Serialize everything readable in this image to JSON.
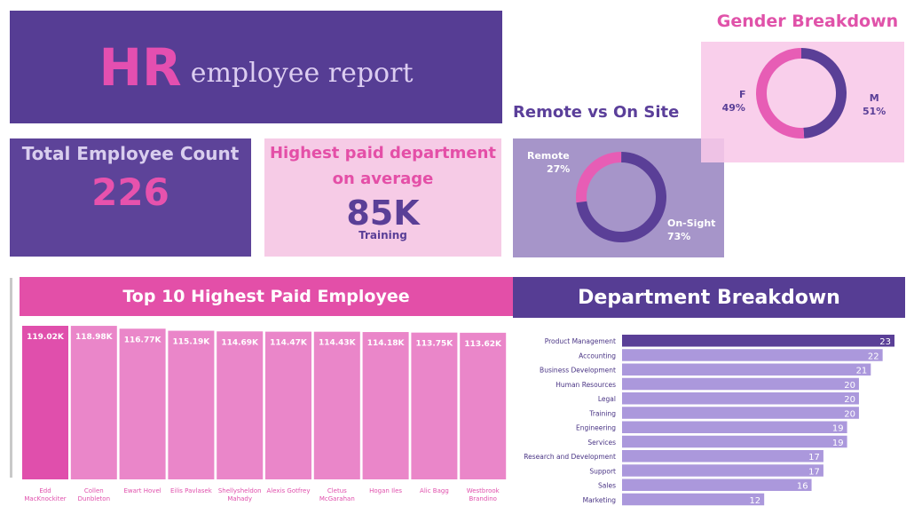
{
  "header": {
    "title_bold": "HR",
    "title_rest": "employee report"
  },
  "kpis": {
    "total_label": "Total Employee Count",
    "total_value": "226",
    "paid_label": "Highest paid department on average",
    "paid_value": "85K",
    "paid_department": "Training"
  },
  "colors": {
    "purple_dark": "#563d94",
    "purple_light": "#a695c9",
    "pink": "#e34fa8",
    "pink_light": "#f6cbe6",
    "bar_pink_top": "#e04fac",
    "bar_pink": "#ea86c9",
    "bar_purple_top": "#5a3f97",
    "bar_purple": "#ab98dc"
  },
  "chart_data": [
    {
      "type": "pie",
      "title": "Remote vs On Site",
      "labels": [
        "Remote",
        "On-Sight"
      ],
      "values": [
        27,
        73
      ],
      "value_labels": [
        "27%",
        "73%"
      ],
      "colors": [
        "#e75db5",
        "#5a3f97"
      ]
    },
    {
      "type": "pie",
      "title": "Gender Breakdown",
      "labels": [
        "F",
        "M"
      ],
      "values": [
        49,
        51
      ],
      "value_labels": [
        "49%",
        "51%"
      ],
      "colors": [
        "#5a3f97",
        "#e75db5"
      ]
    },
    {
      "type": "bar",
      "title": "Top 10 Highest Paid Employee",
      "categories": [
        "Edd MacKnockiter",
        "Collen Dunbleton",
        "Ewart Hovel",
        "Eilis Pavlasek",
        "Shellysheldon Mahady",
        "Alexis Gotfrey",
        "Cletus McGarahan",
        "Hogan Iles",
        "Alic Bagg",
        "Westbrook Brandino"
      ],
      "values": [
        119.02,
        118.98,
        116.77,
        115.19,
        114.69,
        114.47,
        114.43,
        114.18,
        113.75,
        113.62
      ],
      "value_labels": [
        "119.02K",
        "118.98K",
        "116.77K",
        "115.19K",
        "114.69K",
        "114.47K",
        "114.43K",
        "114.18K",
        "113.75K",
        "113.62K"
      ],
      "unit": "K",
      "ylim": [
        0,
        119.02
      ]
    },
    {
      "type": "bar",
      "orientation": "horizontal",
      "title": "Department Breakdown",
      "categories": [
        "Product Management",
        "Accounting",
        "Business Development",
        "Human Resources",
        "Legal",
        "Training",
        "Engineering",
        "Services",
        "Research and Development",
        "Support",
        "Sales",
        "Marketing"
      ],
      "values": [
        23,
        22,
        21,
        20,
        20,
        20,
        19,
        19,
        17,
        17,
        16,
        12
      ],
      "xlim": [
        0,
        23
      ]
    }
  ]
}
